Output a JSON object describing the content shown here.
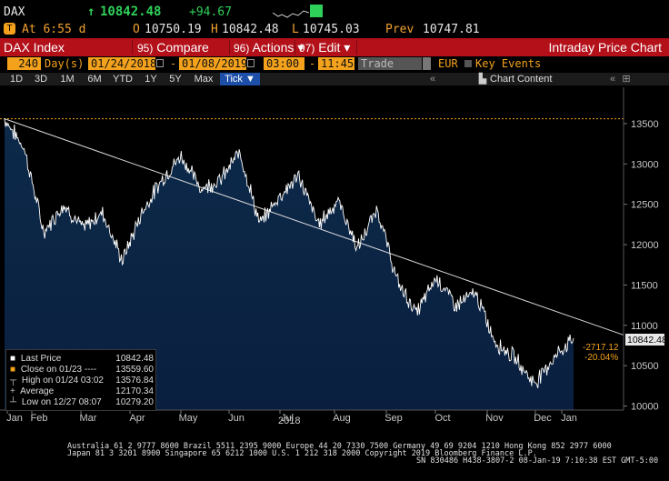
{
  "quote": {
    "ticker": "DAX",
    "arrow": "↑",
    "last": "10842.48",
    "change": "+94.67",
    "badge": "T",
    "time_label": "At 6:55 d",
    "open_label": "O",
    "open": "10750.19",
    "high_label": "H",
    "high": "10842.48",
    "low_label": "L",
    "low": "10745.03",
    "prev_label": "Prev",
    "prev": "10747.81"
  },
  "menu": {
    "title": "DAX Index",
    "compare_num": "95)",
    "compare": "Compare",
    "actions_num": "96)",
    "actions": "Actions",
    "edit_num": "97)",
    "edit": "Edit",
    "caret": "▾",
    "chart_title": "Intraday Price Chart"
  },
  "controls": {
    "period_count": "240",
    "period_unit": "Day(s)",
    "start_date": "01/24/2018",
    "dash": "-",
    "end_date": "01/08/2019",
    "start_time": "03:00",
    "end_time": "11:45",
    "field": "Trade",
    "currency": "EUR",
    "key_events": "Key Events"
  },
  "tabs": {
    "items": [
      "1D",
      "3D",
      "1M",
      "6M",
      "YTD",
      "1Y",
      "5Y",
      "Max",
      "Tick ▼"
    ],
    "active_index": 8,
    "chart_content": "Chart Content",
    "left_arrows": "«",
    "right_arrows": "«"
  },
  "chart_data": {
    "type": "area",
    "x_ticks": [
      "Jan",
      "Feb",
      "Mar",
      "Apr",
      "May",
      "Jun",
      "Jul",
      "Aug",
      "Sep",
      "Oct",
      "Nov",
      "Dec",
      "Jan"
    ],
    "year_label": "2018",
    "y_ticks": [
      10000,
      10500,
      11000,
      11500,
      12000,
      12500,
      13000,
      13500
    ],
    "ylim": [
      9950,
      13950
    ],
    "grid": false,
    "monthly_points": [
      {
        "x": "Jan 24",
        "y": 13560
      },
      {
        "x": "Feb 01",
        "y": 13200
      },
      {
        "x": "Feb 09",
        "y": 12150
      },
      {
        "x": "Feb 20",
        "y": 12500
      },
      {
        "x": "Mar 01",
        "y": 12200
      },
      {
        "x": "Mar 12",
        "y": 12400
      },
      {
        "x": "Mar 26",
        "y": 11800
      },
      {
        "x": "Apr 12",
        "y": 12400
      },
      {
        "x": "Apr 26",
        "y": 12800
      },
      {
        "x": "May 15",
        "y": 13100
      },
      {
        "x": "May 30",
        "y": 12700
      },
      {
        "x": "Jun 06",
        "y": 12800
      },
      {
        "x": "Jun 13",
        "y": 13150
      },
      {
        "x": "Jun 28",
        "y": 12250
      },
      {
        "x": "Jul 10",
        "y": 12600
      },
      {
        "x": "Jul 30",
        "y": 12850
      },
      {
        "x": "Aug 15",
        "y": 12250
      },
      {
        "x": "Aug 27",
        "y": 12550
      },
      {
        "x": "Sep 07",
        "y": 11950
      },
      {
        "x": "Sep 27",
        "y": 12450
      },
      {
        "x": "Oct 11",
        "y": 11550
      },
      {
        "x": "Oct 26",
        "y": 11150
      },
      {
        "x": "Nov 07",
        "y": 11600
      },
      {
        "x": "Nov 20",
        "y": 11250
      },
      {
        "x": "Nov 30",
        "y": 11400
      },
      {
        "x": "Dec 10",
        "y": 10800
      },
      {
        "x": "Dec 20",
        "y": 10600
      },
      {
        "x": "Dec 27",
        "y": 10280
      },
      {
        "x": "Jan 03",
        "y": 10600
      },
      {
        "x": "Jan 08",
        "y": 10842
      }
    ],
    "reference_level": 13559.6,
    "trendline": [
      {
        "x": "Jan 24",
        "y": 13560
      },
      {
        "x": "Jan 08",
        "y": 10880
      }
    ],
    "last_price_tag": "10842.48",
    "change_tag": "-2717.12",
    "change_pct_tag": "-20.04%",
    "colors": {
      "area_top": "#0d2a4a",
      "area_bottom": "#0a1f3f",
      "line": "#ffffff",
      "reference": "#f4a21c",
      "trend": "#d8d8d8"
    }
  },
  "legend": {
    "rows": [
      {
        "icon": "■",
        "label": "Last Price",
        "value": "10842.48",
        "color": "#ffffff"
      },
      {
        "icon": "■",
        "label": "Close on 01/23 ----",
        "value": "13559.60",
        "color": "#f4a21c"
      },
      {
        "icon": "┬",
        "label": "High on 01/24 03:02",
        "value": "13576.84",
        "color": "#bbbbbb"
      },
      {
        "icon": "+",
        "label": "Average",
        "value": "12170.34",
        "color": "#bbbbbb"
      },
      {
        "icon": "┴",
        "label": "Low on 12/27 08:07",
        "value": "10279.20",
        "color": "#bbbbbb"
      }
    ]
  },
  "footer": {
    "line1": "Australia 61 2 9777 8600 Brazil 5511 2395 9000 Europe 44 20 7330 7500 Germany 49 69 9204 1210 Hong Kong 852 2977 6000",
    "line2": "Japan 81 3 3201 8900         Singapore 65 6212 1000       U.S. 1 212 318 2000          Copyright 2019 Bloomberg Finance L.P.",
    "line3": "SN 830486 H438-3807-2 08-Jan-19  7:10:38 EST  GMT-5:00"
  }
}
